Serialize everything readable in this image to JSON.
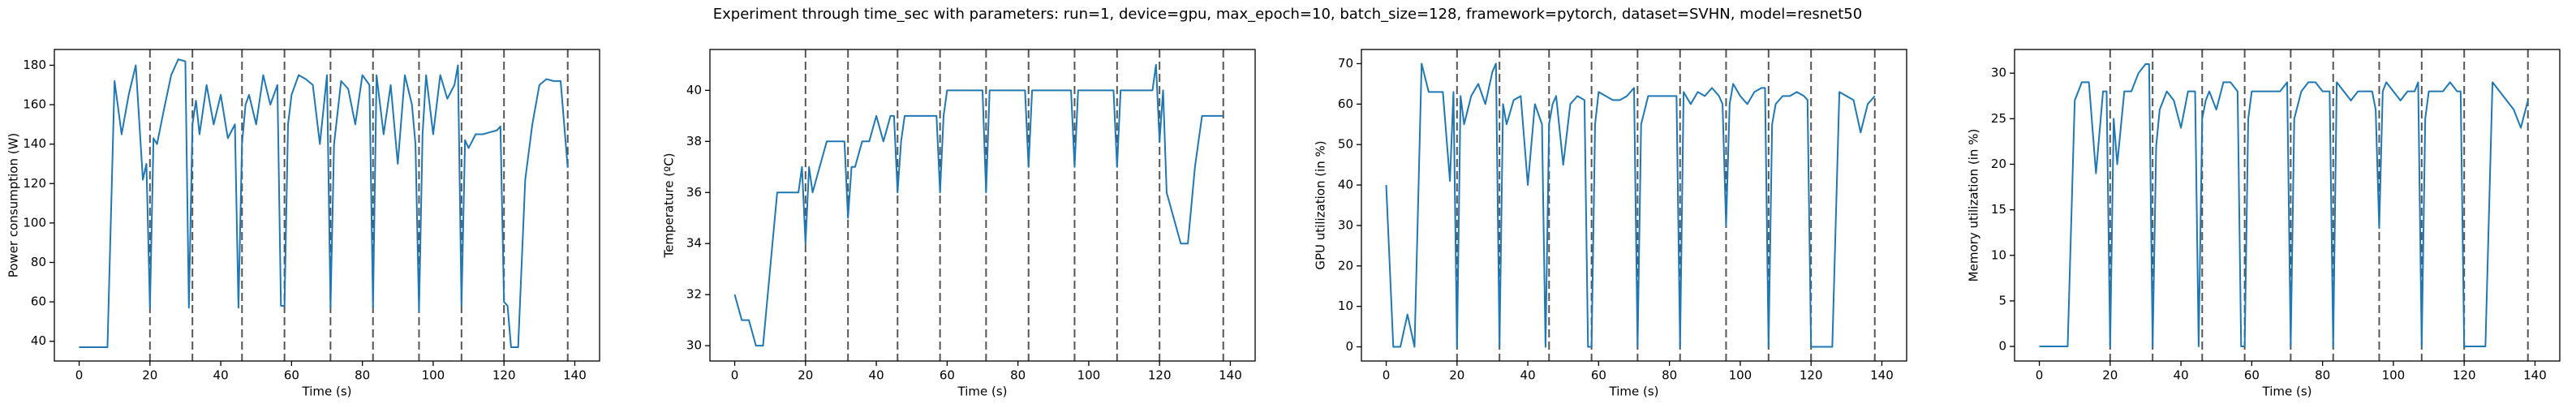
{
  "title": "Experiment through time_sec with parameters: run=1, device=gpu, max_epoch=10, batch_size=128, framework=pytorch, dataset=SVHN, model=resnet50",
  "chart_data": [
    {
      "type": "line",
      "xlabel": "Time (s)",
      "ylabel": "Power consumption (W)",
      "color": "#1f77b4",
      "x": [
        0,
        2,
        4,
        6,
        8,
        10,
        12,
        14,
        16,
        18,
        19,
        20,
        21,
        22,
        24,
        26,
        28,
        30,
        31,
        32,
        33,
        34,
        36,
        38,
        40,
        42,
        44,
        45,
        46,
        47,
        48,
        50,
        52,
        54,
        56,
        57,
        58,
        59,
        60,
        62,
        64,
        66,
        68,
        70,
        71,
        72,
        74,
        76,
        78,
        80,
        82,
        83,
        84,
        86,
        88,
        90,
        92,
        94,
        95,
        96,
        97,
        98,
        100,
        102,
        104,
        106,
        107,
        108,
        109,
        110,
        112,
        114,
        116,
        118,
        119,
        120,
        121,
        122,
        124,
        126,
        128,
        130,
        132,
        134,
        136,
        138
      ],
      "values": [
        37,
        37,
        37,
        37,
        37,
        172,
        145,
        165,
        180,
        122,
        130,
        57,
        143,
        140,
        158,
        175,
        183,
        182,
        57,
        150,
        162,
        145,
        170,
        150,
        165,
        143,
        150,
        57,
        140,
        160,
        165,
        150,
        175,
        160,
        170,
        58,
        58,
        150,
        165,
        175,
        173,
        170,
        140,
        175,
        57,
        140,
        172,
        168,
        150,
        175,
        170,
        57,
        175,
        145,
        170,
        130,
        175,
        160,
        140,
        55,
        145,
        175,
        145,
        175,
        163,
        170,
        180,
        58,
        142,
        138,
        145,
        145,
        146,
        147,
        149,
        60,
        58,
        37,
        37,
        122,
        150,
        170,
        173,
        172,
        172,
        128
      ],
      "vlines": [
        20,
        32,
        46,
        58,
        71,
        83,
        96,
        108,
        120,
        138
      ],
      "xlim": [
        -7,
        147
      ],
      "xticks": [
        0,
        20,
        40,
        60,
        80,
        100,
        120,
        140
      ],
      "ylim": [
        30,
        188
      ],
      "yticks": [
        40,
        60,
        80,
        100,
        120,
        140,
        160,
        180
      ]
    },
    {
      "type": "line",
      "xlabel": "Time (s)",
      "ylabel": "Temperature (ºC)",
      "color": "#1f77b4",
      "x": [
        0,
        2,
        4,
        6,
        8,
        10,
        12,
        14,
        16,
        18,
        19,
        20,
        21,
        22,
        24,
        26,
        28,
        30,
        31,
        32,
        33,
        34,
        36,
        38,
        40,
        42,
        44,
        45,
        46,
        47,
        48,
        50,
        52,
        54,
        56,
        57,
        58,
        59,
        60,
        62,
        64,
        66,
        68,
        70,
        71,
        72,
        74,
        76,
        78,
        80,
        82,
        83,
        84,
        86,
        88,
        90,
        92,
        94,
        95,
        96,
        97,
        98,
        100,
        102,
        104,
        106,
        107,
        108,
        109,
        110,
        112,
        114,
        116,
        118,
        119,
        120,
        121,
        122,
        124,
        126,
        128,
        130,
        132,
        134,
        136,
        138
      ],
      "values": [
        32,
        31,
        31,
        30,
        30,
        33,
        36,
        36,
        36,
        36,
        37,
        34,
        37,
        36,
        37,
        38,
        38,
        38,
        38,
        35,
        37,
        37,
        38,
        38,
        39,
        38,
        39,
        39,
        36,
        38,
        39,
        39,
        39,
        39,
        39,
        39,
        36,
        39,
        40,
        40,
        40,
        40,
        40,
        40,
        36,
        40,
        40,
        40,
        40,
        40,
        40,
        37,
        40,
        40,
        40,
        40,
        40,
        40,
        40,
        37,
        40,
        40,
        40,
        40,
        40,
        40,
        40,
        37,
        40,
        40,
        40,
        40,
        40,
        40,
        41,
        38,
        40,
        36,
        35,
        34,
        34,
        37,
        39,
        39,
        39,
        39
      ],
      "vlines": [
        20,
        32,
        46,
        58,
        71,
        83,
        96,
        108,
        120,
        138
      ],
      "xlim": [
        -7,
        147
      ],
      "xticks": [
        0,
        20,
        40,
        60,
        80,
        100,
        120,
        140
      ],
      "ylim": [
        29.4,
        41.6
      ],
      "yticks": [
        30,
        32,
        34,
        36,
        38,
        40
      ]
    },
    {
      "type": "line",
      "xlabel": "Time (s)",
      "ylabel": "GPU utilization (in %)",
      "color": "#1f77b4",
      "x": [
        0,
        2,
        4,
        6,
        8,
        10,
        12,
        14,
        16,
        18,
        19,
        20,
        21,
        22,
        24,
        26,
        28,
        30,
        31,
        32,
        33,
        34,
        36,
        38,
        40,
        42,
        44,
        45,
        46,
        47,
        48,
        50,
        52,
        54,
        56,
        57,
        58,
        59,
        60,
        62,
        64,
        66,
        68,
        70,
        71,
        72,
        74,
        76,
        78,
        80,
        82,
        83,
        84,
        86,
        88,
        90,
        92,
        94,
        95,
        96,
        97,
        98,
        100,
        102,
        104,
        106,
        107,
        108,
        109,
        110,
        112,
        114,
        116,
        118,
        119,
        120,
        121,
        122,
        124,
        126,
        128,
        130,
        132,
        134,
        136,
        138
      ],
      "values": [
        40,
        0,
        0,
        8,
        0,
        70,
        63,
        63,
        63,
        41,
        63,
        0,
        62,
        55,
        62,
        65,
        60,
        68,
        70,
        0,
        60,
        55,
        61,
        62,
        40,
        60,
        55,
        0,
        55,
        60,
        62,
        45,
        60,
        62,
        61,
        0,
        0,
        55,
        63,
        62,
        61,
        61,
        62,
        64,
        0,
        55,
        62,
        62,
        62,
        62,
        62,
        0,
        63,
        60,
        63,
        62,
        64,
        62,
        60,
        30,
        60,
        65,
        62,
        60,
        63,
        64,
        64,
        0,
        55,
        60,
        62,
        62,
        63,
        62,
        61,
        0,
        0,
        0,
        0,
        0,
        63,
        62,
        61,
        53,
        60,
        62
      ],
      "vlines": [
        20,
        32,
        46,
        58,
        71,
        83,
        96,
        108,
        120,
        138
      ],
      "xlim": [
        -7,
        147
      ],
      "xticks": [
        0,
        20,
        40,
        60,
        80,
        100,
        120,
        140
      ],
      "ylim": [
        -3.5,
        73.5
      ],
      "yticks": [
        0,
        10,
        20,
        30,
        40,
        50,
        60,
        70
      ]
    },
    {
      "type": "line",
      "xlabel": "Time (s)",
      "ylabel": "Memory utilization (in %)",
      "color": "#1f77b4",
      "x": [
        0,
        2,
        4,
        6,
        8,
        10,
        12,
        14,
        16,
        18,
        19,
        20,
        21,
        22,
        24,
        26,
        28,
        30,
        31,
        32,
        33,
        34,
        36,
        38,
        40,
        42,
        44,
        45,
        46,
        47,
        48,
        50,
        52,
        54,
        56,
        57,
        58,
        59,
        60,
        62,
        64,
        66,
        68,
        70,
        71,
        72,
        74,
        76,
        78,
        80,
        82,
        83,
        84,
        86,
        88,
        90,
        92,
        94,
        95,
        96,
        97,
        98,
        100,
        102,
        104,
        106,
        107,
        108,
        109,
        110,
        112,
        114,
        116,
        118,
        119,
        120,
        121,
        122,
        124,
        126,
        128,
        130,
        132,
        134,
        136,
        138
      ],
      "values": [
        0,
        0,
        0,
        0,
        0,
        27,
        29,
        29,
        19,
        28,
        28,
        0,
        25,
        20,
        28,
        28,
        30,
        31,
        31,
        0,
        22,
        26,
        28,
        27,
        24,
        28,
        28,
        0,
        25,
        27,
        28,
        26,
        29,
        29,
        28,
        0,
        0,
        25,
        28,
        28,
        28,
        28,
        28,
        29,
        0,
        25,
        28,
        29,
        29,
        28,
        28,
        0,
        29,
        28,
        27,
        28,
        28,
        28,
        26,
        13,
        28,
        29,
        28,
        27,
        28,
        28,
        29,
        0,
        25,
        28,
        28,
        28,
        29,
        28,
        28,
        0,
        0,
        0,
        0,
        0,
        29,
        28,
        27,
        26,
        24,
        27
      ],
      "vlines": [
        20,
        32,
        46,
        58,
        71,
        83,
        96,
        108,
        120,
        138
      ],
      "xlim": [
        -7,
        147
      ],
      "xticks": [
        0,
        20,
        40,
        60,
        80,
        100,
        120,
        140
      ],
      "ylim": [
        -1.6,
        32.6
      ],
      "yticks": [
        0,
        5,
        10,
        15,
        20,
        25,
        30
      ]
    }
  ]
}
